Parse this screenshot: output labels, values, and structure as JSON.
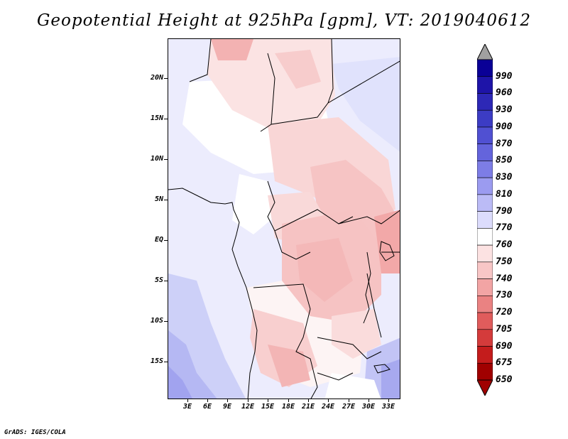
{
  "title": "Geopotential Height at 925hPa [gpm], VT: 2019040612",
  "footer": "GrADS: IGES/COLA",
  "map": {
    "lat_labels": [
      "20N",
      "15N",
      "10N",
      "5N",
      "EQ",
      "5S",
      "10S",
      "15S"
    ],
    "lon_labels": [
      "3E",
      "6E",
      "9E",
      "12E",
      "15E",
      "18E",
      "21E",
      "24E",
      "27E",
      "30E",
      "33E"
    ]
  },
  "colorbar": {
    "labels": [
      "990",
      "960",
      "930",
      "900",
      "870",
      "850",
      "830",
      "810",
      "790",
      "770",
      "760",
      "750",
      "740",
      "730",
      "720",
      "705",
      "690",
      "675",
      "650"
    ],
    "colors": [
      "#0a0096",
      "#1e14a8",
      "#2d28b6",
      "#3c3cc4",
      "#5050d2",
      "#6464dc",
      "#7d7de6",
      "#9b9bf0",
      "#bbbbf6",
      "#dcdcfc",
      "#ffffff",
      "#fce2e2",
      "#f8c6c6",
      "#f2a4a4",
      "#ea8282",
      "#e05c5c",
      "#d43b3b",
      "#c41c1c",
      "#a00000"
    ],
    "over_color": "#a0a0a0",
    "under_color": "#a00000"
  }
}
